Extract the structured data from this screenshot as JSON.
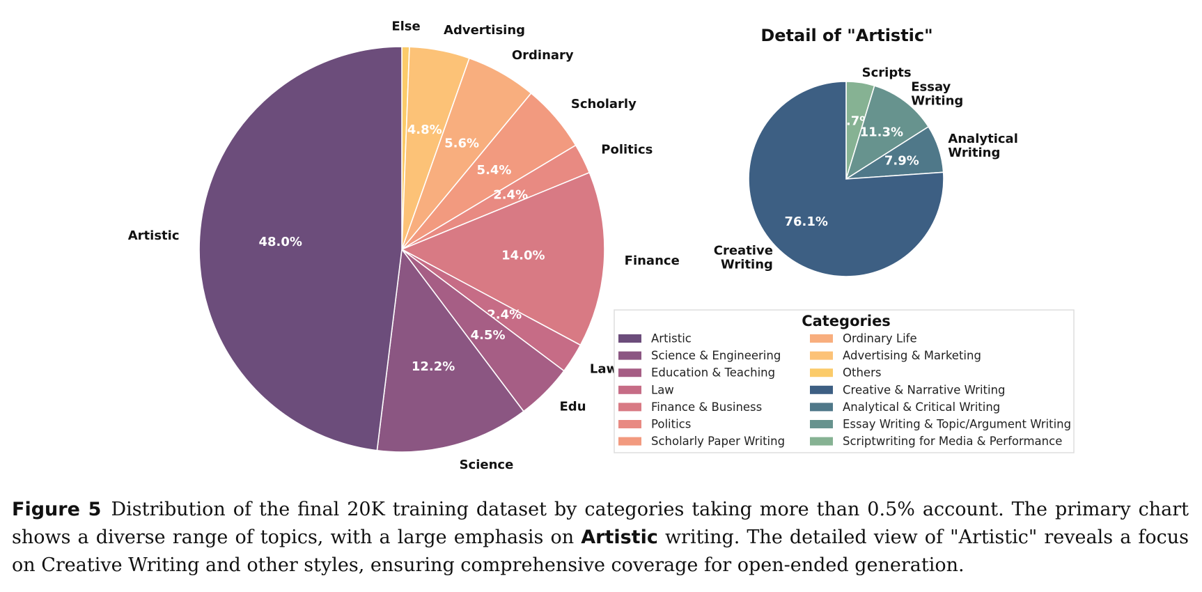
{
  "chart_data": [
    {
      "type": "pie",
      "start_angle_deg": 90,
      "direction": "clockwise",
      "slices": [
        {
          "label": "Else",
          "category": "Others",
          "value": 0.6,
          "pct_text": "",
          "color": "#FBCB6A"
        },
        {
          "label": "Advertising",
          "category": "Advertising & Marketing",
          "value": 4.8,
          "pct_text": "4.8%",
          "color": "#FCC277"
        },
        {
          "label": "Ordinary",
          "category": "Ordinary Life",
          "value": 5.6,
          "pct_text": "5.6%",
          "color": "#F8AE7E"
        },
        {
          "label": "Scholarly",
          "category": "Scholarly Paper Writing",
          "value": 5.4,
          "pct_text": "5.4%",
          "color": "#F29A7F"
        },
        {
          "label": "Politics",
          "category": "Politics",
          "value": 2.4,
          "pct_text": "2.4%",
          "color": "#E88A82"
        },
        {
          "label": "Finance",
          "category": "Finance & Business",
          "value": 14.0,
          "pct_text": "14.0%",
          "color": "#D87A84"
        },
        {
          "label": "Law",
          "category": "Law",
          "value": 2.4,
          "pct_text": "2.4%",
          "color": "#C66C86"
        },
        {
          "label": "Edu",
          "category": "Education & Teaching",
          "value": 4.5,
          "pct_text": "4.5%",
          "color": "#A65E85"
        },
        {
          "label": "Science",
          "category": "Science & Engineering",
          "value": 12.2,
          "pct_text": "12.2%",
          "color": "#8B5682"
        },
        {
          "label": "Artistic",
          "category": "Artistic",
          "value": 48.0,
          "pct_text": "48.0%",
          "color": "#6C4D7B"
        }
      ]
    },
    {
      "type": "pie",
      "title": "Detail of \"Artistic\"",
      "start_angle_deg": 90,
      "direction": "clockwise",
      "slices": [
        {
          "label": "Scripts",
          "category": "Scriptwriting for Media & Performance",
          "value": 4.7,
          "pct_text": "4.7%",
          "color": "#86B293"
        },
        {
          "label": "Essay Writing",
          "category": "Essay Writing & Topic/Argument Writing",
          "value": 11.3,
          "pct_text": "11.3%",
          "color": "#67938E"
        },
        {
          "label": "Analytical Writing",
          "category": "Analytical & Critical Writing",
          "value": 7.9,
          "pct_text": "7.9%",
          "color": "#4F7889"
        },
        {
          "label": "Creative Writing",
          "category": "Creative & Narrative Writing",
          "value": 76.1,
          "pct_text": "76.1%",
          "color": "#3D5F83"
        }
      ]
    }
  ],
  "legend": {
    "title": "Categories",
    "placement": "lower-right",
    "columns": [
      [
        {
          "label": "Artistic",
          "color": "#6C4D7B"
        },
        {
          "label": "Science & Engineering",
          "color": "#8B5682"
        },
        {
          "label": "Education & Teaching",
          "color": "#A65E85"
        },
        {
          "label": "Law",
          "color": "#C66C86"
        },
        {
          "label": "Finance & Business",
          "color": "#D87A84"
        },
        {
          "label": "Politics",
          "color": "#E88A82"
        },
        {
          "label": "Scholarly Paper Writing",
          "color": "#F29A7F"
        }
      ],
      [
        {
          "label": "Ordinary Life",
          "color": "#F8AE7E"
        },
        {
          "label": "Advertising & Marketing",
          "color": "#FCC277"
        },
        {
          "label": "Others",
          "color": "#FBCB6A"
        },
        {
          "label": "Creative & Narrative Writing",
          "color": "#3D5F83"
        },
        {
          "label": "Analytical & Critical Writing",
          "color": "#4F7889"
        },
        {
          "label": "Essay Writing & Topic/Argument Writing",
          "color": "#67938E"
        },
        {
          "label": "Scriptwriting for Media & Performance",
          "color": "#86B293"
        }
      ]
    ]
  },
  "caption": {
    "figure_label": "Figure 5",
    "text_1": "Distribution of the final 20K training dataset by categories taking more than 0.5% account. The primary chart shows a diverse range of topics, with a large emphasis on ",
    "bold_word": "Artistic",
    "text_2": " writing. The detailed view of \"Artistic\" reveals a focus on Creative Writing and other styles, ensuring comprehensive coverage for open-ended generation."
  }
}
